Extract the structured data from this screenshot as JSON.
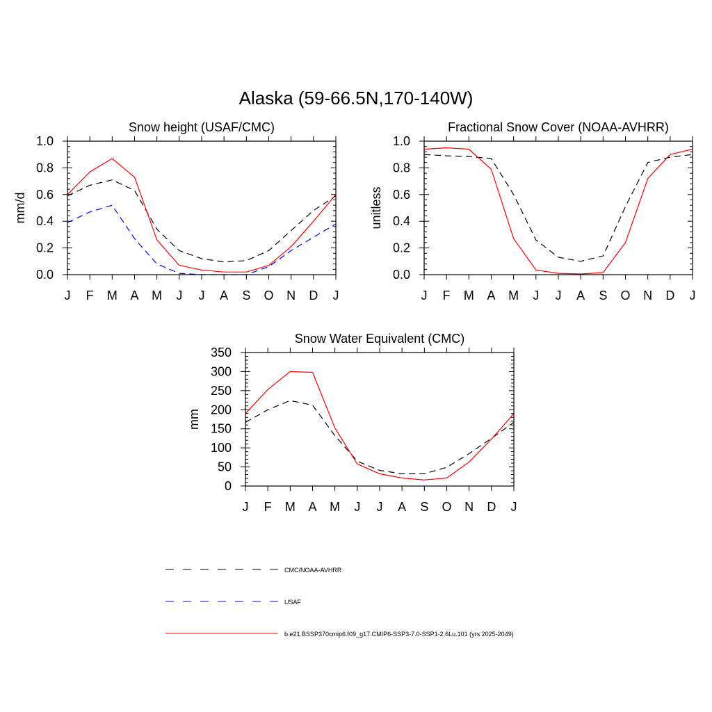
{
  "page_title": "Alaska (59-66.5N,170-140W)",
  "colors": {
    "observed": "#000000",
    "usaf": "#0000ff",
    "model": "#ff0000"
  },
  "legend": [
    {
      "label": "CMC/NOAA-AVHRR",
      "color": "#000000",
      "dash": true
    },
    {
      "label": "USAF",
      "color": "#0000ff",
      "dash": true
    },
    {
      "label": "b.e21.BSSP370cmip6.f09_g17.CMIP6-SSP3-7.0-SSP1-2.6Lu.101 (yrs 2025-2049)",
      "color": "#ff0000",
      "dash": false
    }
  ],
  "chart_data": [
    {
      "type": "line",
      "title": "Snow height (USAF/CMC)",
      "ylabel": "mm/d",
      "xlabel": "",
      "categories": [
        "J",
        "F",
        "M",
        "A",
        "M",
        "J",
        "J",
        "A",
        "S",
        "O",
        "N",
        "D",
        "J"
      ],
      "ylim": [
        0,
        1.0
      ],
      "yticks": [
        0.0,
        0.2,
        0.4,
        0.6,
        0.8,
        1.0
      ],
      "ytick_labels": [
        "0.0",
        "0.2",
        "0.4",
        "0.6",
        "0.8",
        "1.0"
      ],
      "grid": false,
      "series": [
        {
          "color": "#000000",
          "dash": true,
          "values": [
            0.59,
            0.67,
            0.71,
            0.63,
            0.34,
            0.18,
            0.12,
            0.095,
            0.105,
            0.18,
            0.33,
            0.48,
            0.59
          ]
        },
        {
          "color": "#0000ff",
          "dash": true,
          "values": [
            0.39,
            0.47,
            0.52,
            0.27,
            0.08,
            0.01,
            0.0,
            0.0,
            0.0,
            0.06,
            0.18,
            0.28,
            0.38
          ]
        },
        {
          "color": "#ff0000",
          "dash": false,
          "values": [
            0.6,
            0.77,
            0.87,
            0.73,
            0.26,
            0.07,
            0.035,
            0.02,
            0.02,
            0.07,
            0.21,
            0.4,
            0.6
          ]
        }
      ]
    },
    {
      "type": "line",
      "title": "Fractional Snow Cover (NOAA-AVHRR)",
      "ylabel": "unitless",
      "xlabel": "",
      "categories": [
        "J",
        "F",
        "M",
        "A",
        "M",
        "J",
        "J",
        "A",
        "S",
        "O",
        "N",
        "D",
        "J"
      ],
      "ylim": [
        0,
        1.0
      ],
      "yticks": [
        0.0,
        0.2,
        0.4,
        0.6,
        0.8,
        1.0
      ],
      "ytick_labels": [
        "0.0",
        "0.2",
        "0.4",
        "0.6",
        "0.8",
        "1.0"
      ],
      "grid": false,
      "series": [
        {
          "color": "#000000",
          "dash": true,
          "values": [
            0.9,
            0.89,
            0.885,
            0.87,
            0.6,
            0.26,
            0.13,
            0.1,
            0.14,
            0.51,
            0.84,
            0.88,
            0.9
          ]
        },
        {
          "color": "#ff0000",
          "dash": false,
          "values": [
            0.94,
            0.95,
            0.94,
            0.79,
            0.27,
            0.035,
            0.01,
            0.005,
            0.015,
            0.24,
            0.72,
            0.9,
            0.94
          ]
        }
      ]
    },
    {
      "type": "line",
      "title": "Snow Water Equivalent (CMC)",
      "ylabel": "mm",
      "xlabel": "",
      "categories": [
        "J",
        "F",
        "M",
        "A",
        "M",
        "J",
        "J",
        "A",
        "S",
        "O",
        "N",
        "D",
        "J"
      ],
      "ylim": [
        0,
        350
      ],
      "yticks": [
        0,
        50,
        100,
        150,
        200,
        250,
        300,
        350
      ],
      "ytick_labels": [
        "0",
        "50",
        "100",
        "150",
        "200",
        "250",
        "300",
        "350"
      ],
      "grid": false,
      "series": [
        {
          "color": "#000000",
          "dash": true,
          "values": [
            167,
            200,
            224,
            212,
            132,
            65,
            41,
            32,
            32,
            49,
            85,
            125,
            167
          ]
        },
        {
          "color": "#ff0000",
          "dash": false,
          "values": [
            190,
            253,
            300,
            298,
            152,
            58,
            32,
            21,
            16,
            21,
            63,
            123,
            190
          ]
        }
      ]
    }
  ]
}
